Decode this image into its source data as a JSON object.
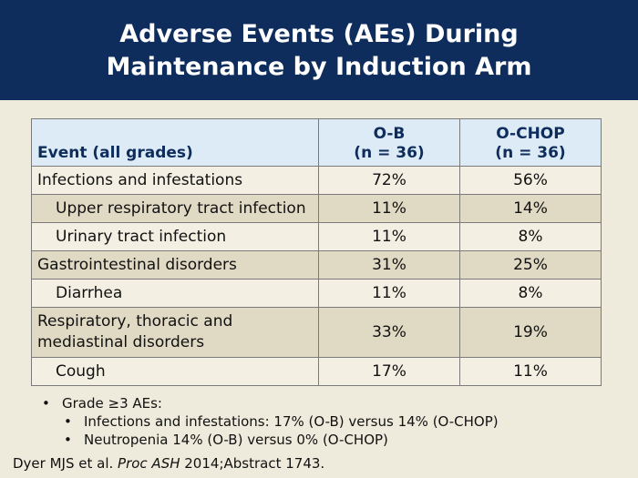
{
  "slide": {
    "title_line1": "Adverse Events (AEs) During",
    "title_line2": "Maintenance by Induction Arm"
  },
  "table": {
    "headers": {
      "event": "Event (all grades)",
      "ob_line1": "O-B",
      "ob_line2": "(n = 36)",
      "ochop_line1": "O-CHOP",
      "ochop_line2": "(n = 36)"
    },
    "rows": [
      {
        "event": "Infections and infestations",
        "ob": "72%",
        "ochop": "56%"
      },
      {
        "event": "Upper respiratory tract infection",
        "ob": "11%",
        "ochop": "14%"
      },
      {
        "event": "Urinary tract infection",
        "ob": "11%",
        "ochop": "8%"
      },
      {
        "event": "Gastrointestinal disorders",
        "ob": "31%",
        "ochop": "25%"
      },
      {
        "event": "Diarrhea",
        "ob": "11%",
        "ochop": "8%"
      },
      {
        "event_line1": "Respiratory, thoracic and",
        "event_line2": "mediastinal disorders",
        "ob": "33%",
        "ochop": "19%"
      },
      {
        "event": "Cough",
        "ob": "17%",
        "ochop": "11%"
      }
    ]
  },
  "bullets": {
    "main": "Grade ≥3 AEs:",
    "sub1": "Infections and infestations: 17% (O-B) versus 14% (O-CHOP)",
    "sub2": "Neutropenia 14% (O-B) versus 0% (O-CHOP)",
    "marker": "•"
  },
  "citation": {
    "authors": "Dyer MJS et al. ",
    "journal": "Proc ASH",
    "details": " 2014;Abstract 1743."
  }
}
